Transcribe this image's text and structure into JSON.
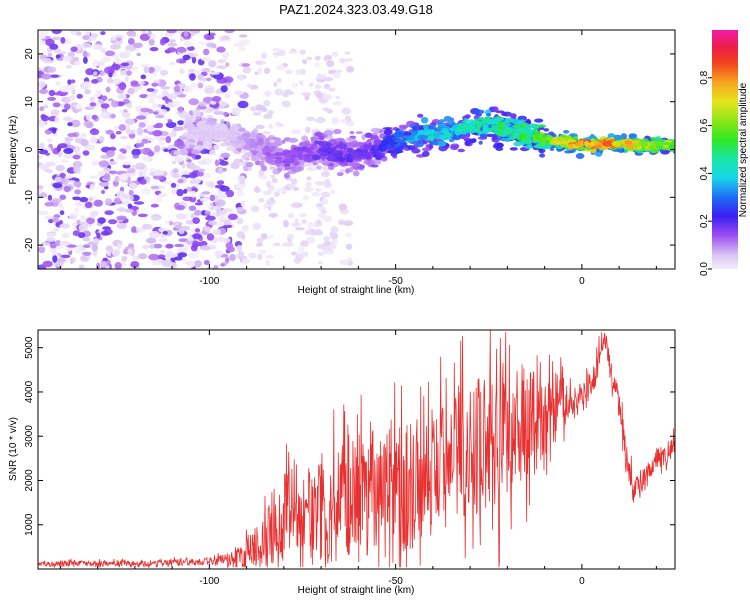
{
  "title": "PAZ1.2024.323.03.49.G18",
  "chart_data": [
    {
      "type": "heatmap",
      "xlabel": "Height of straight line (km)",
      "ylabel": "Frequency (Hz)",
      "xlim": [
        -146,
        25
      ],
      "ylim": [
        -25,
        25
      ],
      "xticks": [
        "-100",
        "-50",
        "0"
      ],
      "xtick_values": [
        -100,
        -50,
        0
      ],
      "yticks": [
        "-20",
        "-10",
        "0",
        "10",
        "20"
      ],
      "ytick_values": [
        -20,
        -10,
        0,
        10,
        20
      ],
      "colorbar": {
        "label": "Normalized spectral amplitude",
        "range": [
          0.0,
          1.0
        ],
        "ticks": [
          "0.0",
          "0.2",
          "0.4",
          "0.6",
          "0.8"
        ],
        "tick_values": [
          0.0,
          0.2,
          0.4,
          0.6,
          0.8
        ],
        "colormap": "rainbow (lavender-violet-blue-cyan-green-yellow-orange-red-magenta)"
      },
      "ridge": {
        "height_km": [
          -105,
          -95,
          -85,
          -80,
          -75,
          -70,
          -65,
          -60,
          -55,
          -50,
          -45,
          -40,
          -35,
          -30,
          -25,
          -20,
          -15,
          -10,
          -5,
          0,
          5,
          10,
          15,
          20,
          25
        ],
        "frequency_hz": [
          4,
          3,
          0,
          -2,
          -1,
          0,
          -1,
          -1,
          0,
          2,
          3,
          3,
          3.5,
          5,
          5,
          4,
          3,
          2,
          1.5,
          1,
          1,
          1.2,
          1,
          1,
          1
        ],
        "amplitude": [
          0.05,
          0.05,
          0.12,
          0.15,
          0.15,
          0.18,
          0.2,
          0.18,
          0.2,
          0.3,
          0.35,
          0.4,
          0.4,
          0.45,
          0.45,
          0.5,
          0.5,
          0.6,
          0.7,
          0.85,
          0.8,
          0.75,
          0.7,
          0.65,
          0.6
        ]
      },
      "noise_region_km": [
        -146,
        -90
      ]
    },
    {
      "type": "line",
      "xlabel": "Height of straight line (km)",
      "ylabel": "SNR (10 * v/v)",
      "xlim": [
        -146,
        25
      ],
      "ylim": [
        0,
        5400
      ],
      "xticks": [
        "-100",
        "-50",
        "0"
      ],
      "xtick_values": [
        -100,
        -50,
        0
      ],
      "yticks": [
        "1000",
        "2000",
        "3000",
        "4000",
        "5000"
      ],
      "ytick_values": [
        1000,
        2000,
        3000,
        4000,
        5000
      ],
      "color": "#e83030",
      "series": [
        {
          "x": [
            -146,
            -140,
            -130,
            -120,
            -110,
            -100,
            -95,
            -92,
            -90,
            -88,
            -85,
            -82,
            -80,
            -78,
            -75,
            -72,
            -70,
            -65,
            -60,
            -55,
            -52,
            -50,
            -48,
            -45,
            -42,
            -40,
            -35,
            -30,
            -25,
            -22,
            -20,
            -17,
            -15,
            -12,
            -10,
            -8,
            -5,
            -3,
            -1,
            1,
            3,
            5,
            6,
            7,
            8,
            10,
            12,
            14,
            16,
            18,
            20,
            22,
            25
          ],
          "y": [
            100,
            120,
            130,
            120,
            150,
            160,
            200,
            280,
            380,
            500,
            700,
            900,
            1100,
            1300,
            1300,
            1200,
            1400,
            1400,
            1600,
            2000,
            2200,
            2000,
            1700,
            1800,
            1900,
            2100,
            2300,
            2600,
            2800,
            3000,
            2500,
            3200,
            3400,
            3300,
            3100,
            3600,
            3800,
            3900,
            3700,
            4000,
            4200,
            4800,
            5300,
            4900,
            4300,
            3800,
            2400,
            1700,
            1900,
            2300,
            2500,
            2600,
            2800
          ],
          "amplitude": [
            60,
            70,
            70,
            70,
            80,
            90,
            200,
            300,
            400,
            500,
            700,
            900,
            1100,
            1200,
            1300,
            1300,
            1400,
            1500,
            1600,
            1700,
            1700,
            1600,
            1500,
            1500,
            1500,
            1600,
            1700,
            1800,
            1800,
            2000,
            1800,
            1600,
            1500,
            1300,
            1200,
            1000,
            700,
            500,
            400,
            400,
            400,
            400,
            300,
            300,
            300,
            300,
            500,
            400,
            300,
            300,
            300,
            300,
            300
          ]
        }
      ]
    }
  ]
}
